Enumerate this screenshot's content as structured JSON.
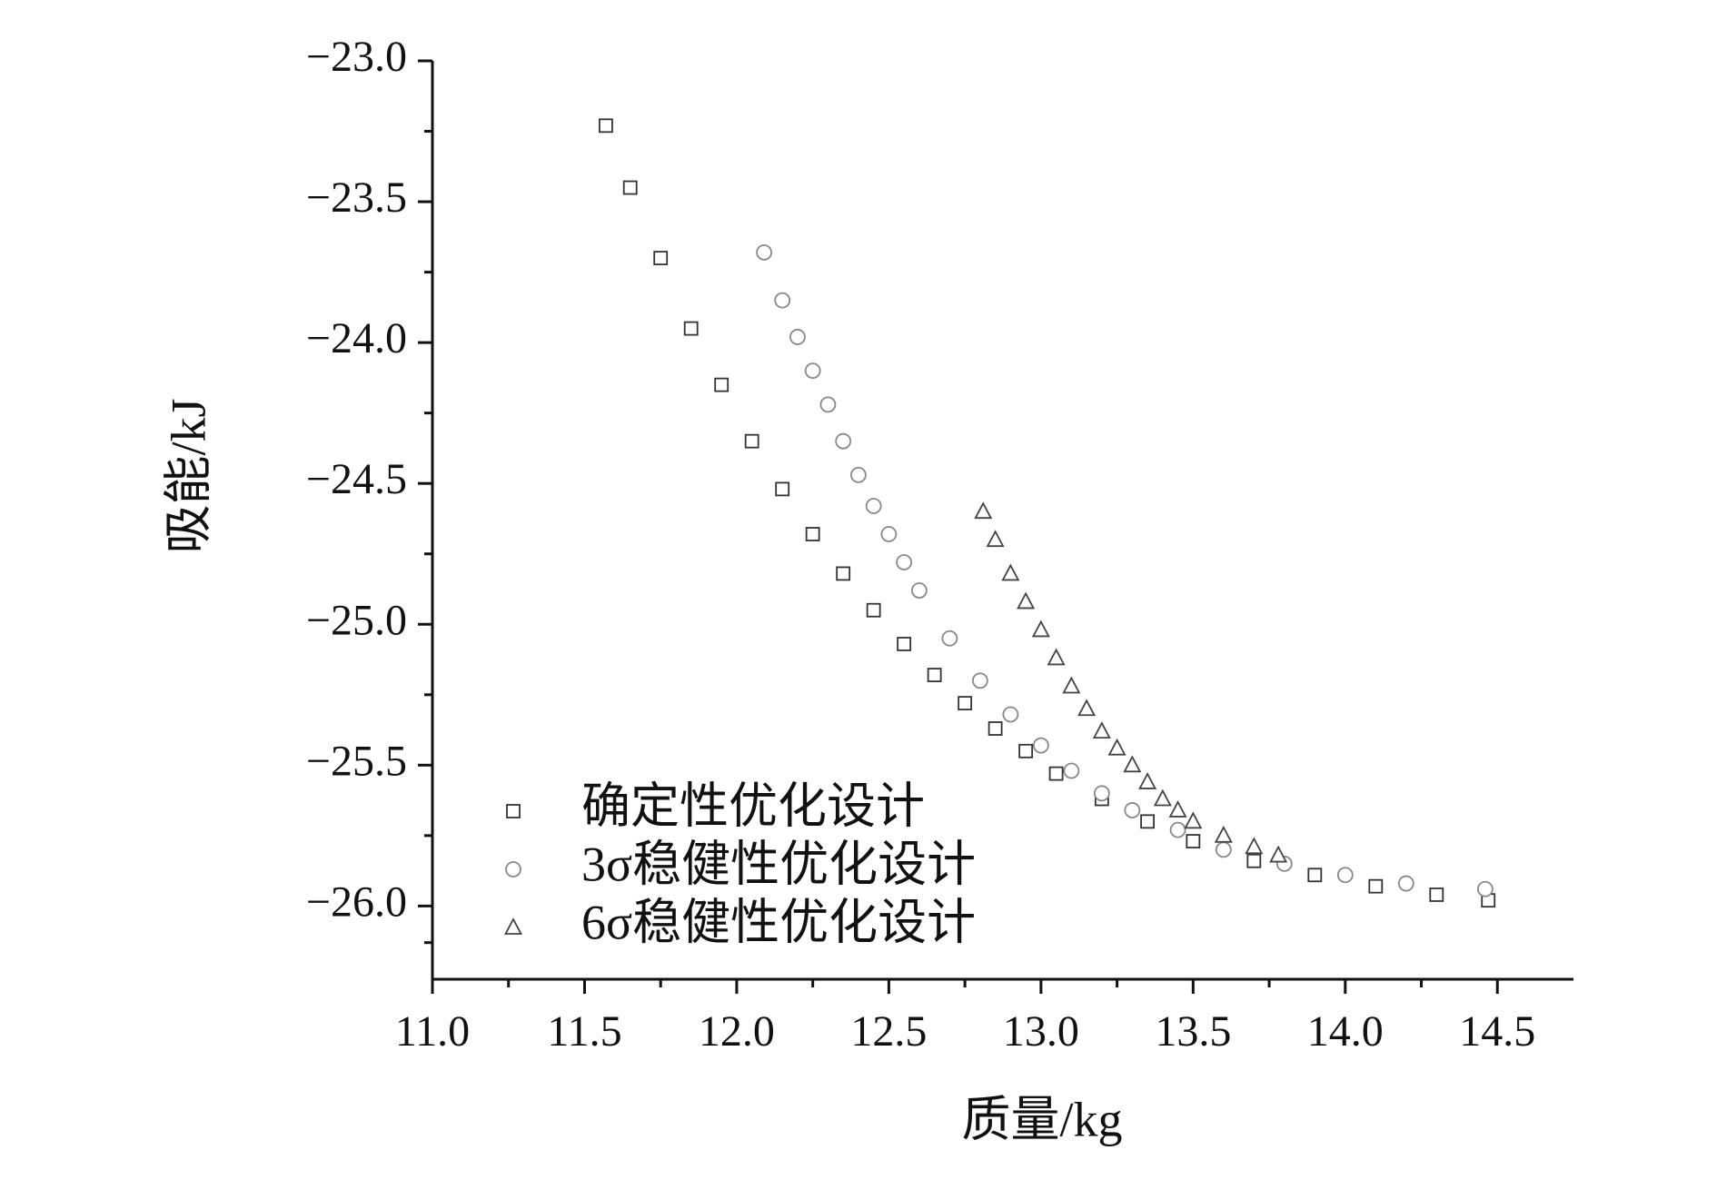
{
  "chart_data": {
    "type": "scatter",
    "xlabel": "质量/kg",
    "ylabel": "吸能/kJ",
    "xlim": [
      11.0,
      14.75
    ],
    "ylim": [
      -26.26,
      -23.0
    ],
    "xticks": [
      {
        "value": 11,
        "label": "11.0"
      },
      11.5,
      {
        "value": 12,
        "label": "12.0"
      },
      12.5,
      {
        "value": 13,
        "label": "13.0"
      },
      13.5,
      {
        "value": 14,
        "label": "14.0"
      },
      14.5
    ],
    "yticks": [
      {
        "value": -23,
        "label": "−23.0"
      },
      {
        "value": -23.5,
        "label": "−23.5"
      },
      {
        "value": -24,
        "label": "−24.0"
      },
      {
        "value": -24.5,
        "label": "−24.5"
      },
      {
        "value": -25,
        "label": "−25.0"
      },
      {
        "value": -25.5,
        "label": "−25.5"
      },
      {
        "value": -26,
        "label": "−26.0"
      }
    ],
    "legend": "lower-left",
    "series": [
      {
        "name": "确定性优化设计",
        "marker": "square",
        "color": "#333333",
        "x": [
          11.57,
          11.65,
          11.75,
          11.85,
          11.95,
          12.05,
          12.15,
          12.25,
          12.35,
          12.45,
          12.55,
          12.65,
          12.75,
          12.85,
          12.95,
          13.05,
          13.2,
          13.35,
          13.5,
          13.7,
          13.9,
          14.1,
          14.3,
          14.47
        ],
        "values": [
          -23.23,
          -23.45,
          -23.7,
          -23.95,
          -24.15,
          -24.35,
          -24.52,
          -24.68,
          -24.82,
          -24.95,
          -25.07,
          -25.18,
          -25.28,
          -25.37,
          -25.45,
          -25.53,
          -25.62,
          -25.7,
          -25.77,
          -25.84,
          -25.89,
          -25.93,
          -25.96,
          -25.98
        ]
      },
      {
        "name": "3σ稳健性优化设计",
        "marker": "circle",
        "color": "#888888",
        "x": [
          12.09,
          12.15,
          12.2,
          12.25,
          12.3,
          12.35,
          12.4,
          12.45,
          12.5,
          12.55,
          12.6,
          12.7,
          12.8,
          12.9,
          13.0,
          13.1,
          13.2,
          13.3,
          13.45,
          13.6,
          13.8,
          14.0,
          14.2,
          14.46
        ],
        "values": [
          -23.68,
          -23.85,
          -23.98,
          -24.1,
          -24.22,
          -24.35,
          -24.47,
          -24.58,
          -24.68,
          -24.78,
          -24.88,
          -25.05,
          -25.2,
          -25.32,
          -25.43,
          -25.52,
          -25.6,
          -25.66,
          -25.73,
          -25.8,
          -25.85,
          -25.89,
          -25.92,
          -25.94
        ]
      },
      {
        "name": "6σ稳健性优化设计",
        "marker": "triangle",
        "color": "#444444",
        "x": [
          12.81,
          12.85,
          12.9,
          12.95,
          13.0,
          13.05,
          13.1,
          13.15,
          13.2,
          13.25,
          13.3,
          13.35,
          13.4,
          13.45,
          13.5,
          13.6,
          13.7,
          13.78
        ],
        "values": [
          -24.6,
          -24.7,
          -24.82,
          -24.92,
          -25.02,
          -25.12,
          -25.22,
          -25.3,
          -25.38,
          -25.44,
          -25.5,
          -25.56,
          -25.62,
          -25.66,
          -25.7,
          -25.75,
          -25.79,
          -25.82
        ]
      }
    ]
  }
}
